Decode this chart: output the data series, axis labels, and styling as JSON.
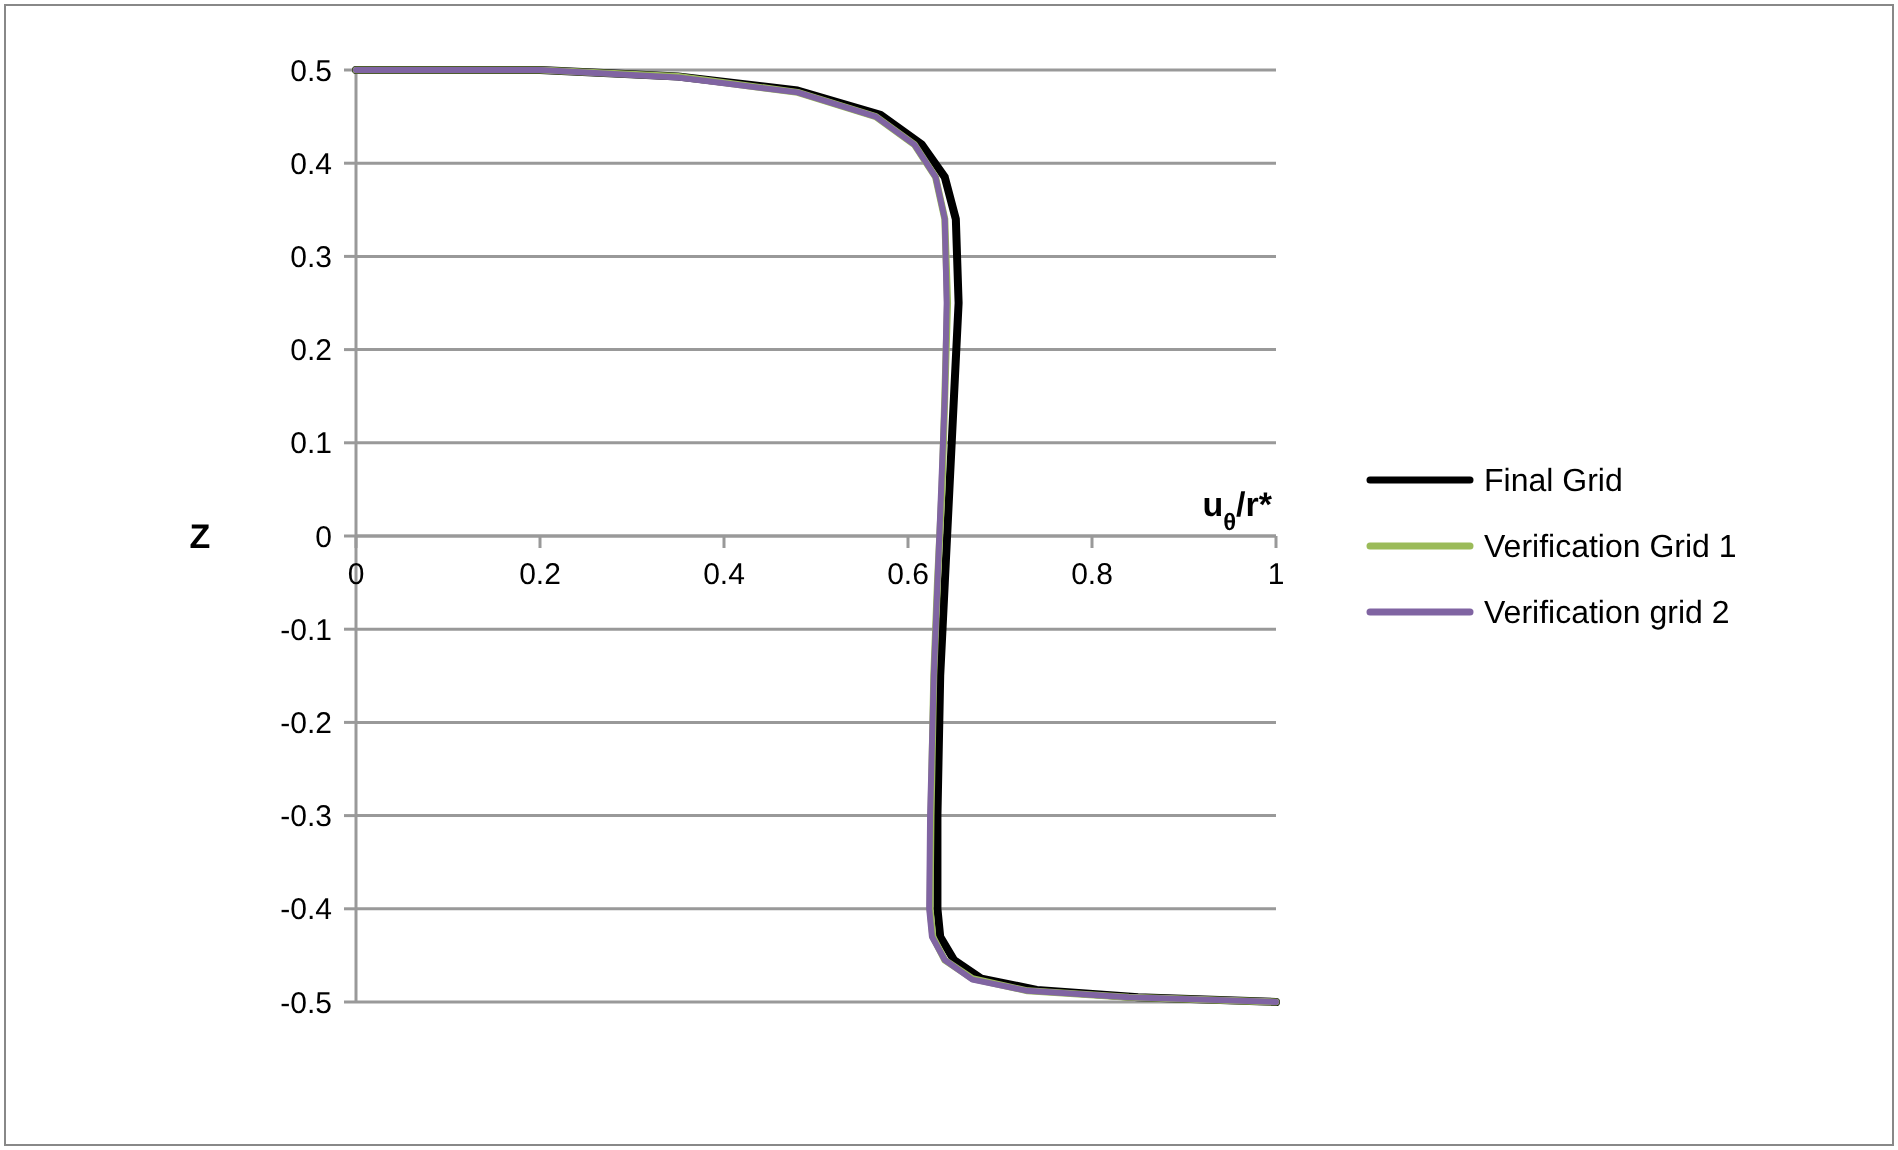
{
  "chart_data": {
    "type": "line",
    "xlabel": "u$_{θ}$/r*",
    "ylabel": "Z",
    "xlim": [
      0,
      1
    ],
    "ylim": [
      -0.5,
      0.5
    ],
    "xticks": [
      0,
      0.2,
      0.4,
      0.6,
      0.8,
      1
    ],
    "yticks": [
      -0.5,
      -0.4,
      -0.3,
      -0.2,
      -0.1,
      0,
      0.1,
      0.2,
      0.3,
      0.4,
      0.5
    ],
    "grid": "y",
    "legend": "right",
    "marker": "none",
    "line_style": "solid",
    "series": [
      {
        "name": "Final Grid",
        "color": "#000000",
        "x": [
          0,
          0.2,
          0.35,
          0.48,
          0.57,
          0.615,
          0.64,
          0.652,
          0.655,
          0.65,
          0.645,
          0.64,
          0.635,
          0.632,
          0.632,
          0.635,
          0.65,
          0.68,
          0.74,
          0.85,
          1
        ],
        "values": [
          0.5,
          0.5,
          0.493,
          0.478,
          0.452,
          0.42,
          0.385,
          0.34,
          0.25,
          0.15,
          0.05,
          -0.05,
          -0.15,
          -0.3,
          -0.4,
          -0.43,
          -0.455,
          -0.475,
          -0.487,
          -0.495,
          -0.5
        ]
      },
      {
        "name": "Verification Grid 1",
        "color": "#9bbb59",
        "x": [
          0,
          0.2,
          0.35,
          0.48,
          0.565,
          0.607,
          0.63,
          0.64,
          0.643,
          0.64,
          0.637,
          0.632,
          0.628,
          0.625,
          0.624,
          0.627,
          0.64,
          0.67,
          0.73,
          0.84,
          1
        ],
        "values": [
          0.5,
          0.5,
          0.493,
          0.476,
          0.45,
          0.42,
          0.385,
          0.34,
          0.25,
          0.15,
          0.05,
          -0.05,
          -0.15,
          -0.3,
          -0.4,
          -0.43,
          -0.455,
          -0.475,
          -0.488,
          -0.495,
          -0.5
        ]
      },
      {
        "name": "Verification grid 2",
        "color": "#8064a2",
        "x": [
          0,
          0.2,
          0.35,
          0.48,
          0.565,
          0.607,
          0.63,
          0.64,
          0.642,
          0.64,
          0.636,
          0.632,
          0.628,
          0.624,
          0.623,
          0.626,
          0.64,
          0.67,
          0.73,
          0.84,
          1
        ],
        "values": [
          0.5,
          0.5,
          0.492,
          0.476,
          0.45,
          0.42,
          0.385,
          0.34,
          0.25,
          0.15,
          0.05,
          -0.05,
          -0.15,
          -0.3,
          -0.4,
          -0.43,
          -0.455,
          -0.476,
          -0.488,
          -0.495,
          -0.5
        ]
      }
    ]
  }
}
